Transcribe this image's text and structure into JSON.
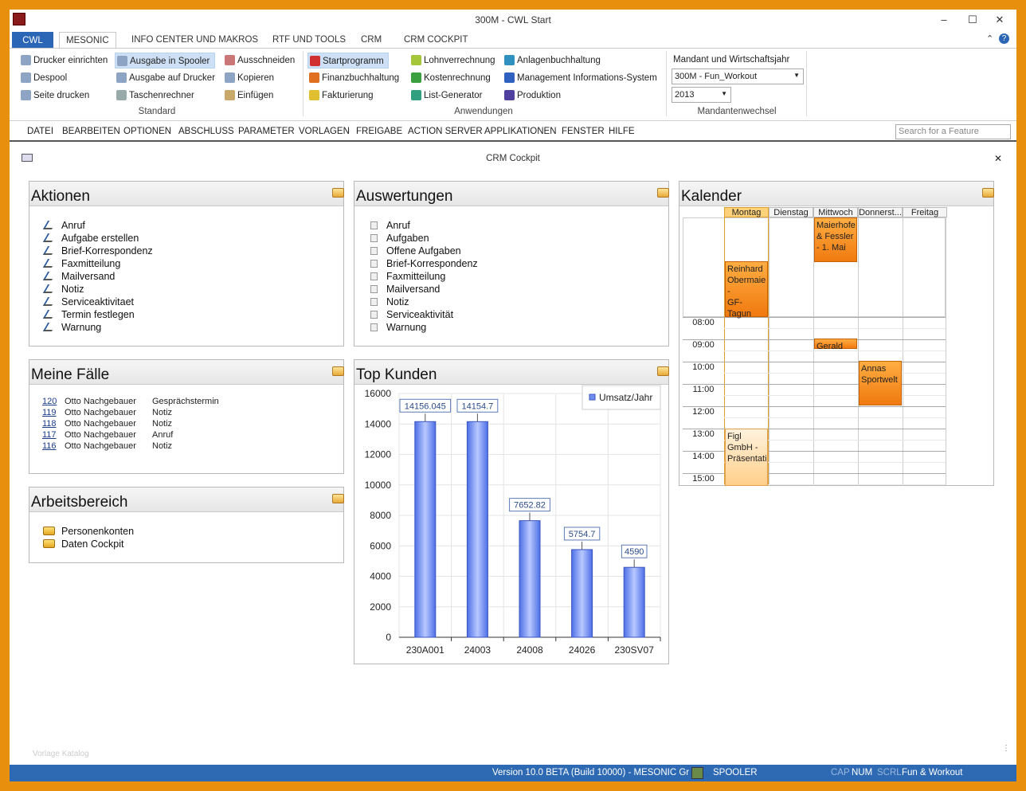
{
  "window": {
    "title": "300M - CWL Start",
    "minimize": "–",
    "maximize": "☐",
    "close": "✕"
  },
  "tabs": [
    "CWL",
    "MESONIC",
    "INFO CENTER UND MAKROS",
    "RTF UND TOOLS",
    "CRM",
    "CRM COCKPIT"
  ],
  "ribbon": {
    "standard": {
      "label": "Standard",
      "col1": [
        "Drucker einrichten",
        "Despool",
        "Seite drucken"
      ],
      "col2": [
        "Ausgabe in Spooler",
        "Ausgabe auf Drucker",
        "Taschenrechner"
      ],
      "col3": [
        "Ausschneiden",
        "Kopieren",
        "Einfügen"
      ]
    },
    "anwendungen": {
      "label": "Anwendungen",
      "col1": [
        "Startprogramm",
        "Finanzbuchhaltung",
        "Fakturierung"
      ],
      "col2": [
        "Lohnverrechnung",
        "Kostenrechnung",
        "List-Generator"
      ],
      "col3": [
        "Anlagenbuchhaltung",
        "Management Informations-System",
        "Produktion"
      ]
    },
    "mandant": {
      "title": "Mandant und Wirtschaftsjahr",
      "mandant_value": "300M - Fun_Workout",
      "year_value": "2013",
      "label": "Mandantenwechsel"
    }
  },
  "menu": [
    "DATEI",
    "BEARBEITEN",
    "OPTIONEN",
    "ABSCHLUSS",
    "PARAMETER",
    "VORLAGEN",
    "FREIGABE",
    "ACTION SERVER",
    "APPLIKATIONEN",
    "FENSTER",
    "HILFE"
  ],
  "search": {
    "placeholder": "Search for a Feature"
  },
  "cockpit": {
    "title": "CRM Cockpit",
    "close": "✕"
  },
  "aktionen": {
    "title": "Aktionen",
    "items": [
      "Anruf",
      "Aufgabe erstellen",
      "Brief-Korrespondenz",
      "Faxmitteilung",
      "Mailversand",
      "Notiz",
      "Serviceaktivitaet",
      "Termin festlegen",
      "Warnung"
    ]
  },
  "auswertungen": {
    "title": "Auswertungen",
    "items": [
      "Anruf",
      "Aufgaben",
      "Offene Aufgaben",
      "Brief-Korrespondenz",
      "Faxmitteilung",
      "Mailversand",
      "Notiz",
      "Serviceaktivität",
      "Warnung"
    ]
  },
  "faelle": {
    "title": "Meine Fälle",
    "rows": [
      {
        "id": "120",
        "name": "Otto Nachgebauer",
        "type": "Gesprächstermin"
      },
      {
        "id": "119",
        "name": "Otto Nachgebauer",
        "type": "Notiz"
      },
      {
        "id": "118",
        "name": "Otto Nachgebauer",
        "type": "Notiz"
      },
      {
        "id": "117",
        "name": "Otto Nachgebauer",
        "type": "Anruf"
      },
      {
        "id": "116",
        "name": "Otto Nachgebauer",
        "type": "Notiz"
      }
    ]
  },
  "arbeitsbereich": {
    "title": "Arbeitsbereich",
    "items": [
      "Personenkonten",
      "Daten Cockpit"
    ]
  },
  "topkunden": {
    "title": "Top Kunden"
  },
  "chart_data": {
    "type": "bar",
    "categories": [
      "230A001",
      "24003",
      "24008",
      "24026",
      "230SV07"
    ],
    "series": [
      {
        "name": "Umsatz/Jahr",
        "values": [
          14156.045,
          14154.7,
          7652.82,
          5754.7,
          4590
        ]
      }
    ],
    "data_labels": [
      "14156.045",
      "14154.7",
      "7652.82",
      "5754.7",
      "4590"
    ],
    "ylim": [
      0,
      16000
    ],
    "yticks": [
      "0",
      "2000",
      "4000",
      "6000",
      "8000",
      "10000",
      "12000",
      "14000",
      "16000"
    ],
    "legend": "top-right",
    "bar_color": "#6f8ef0"
  },
  "kalender": {
    "title": "Kalender",
    "days": [
      "Montag",
      "Dienstag",
      "Mittwoch",
      "Donnerst...",
      "Freitag"
    ],
    "times": [
      "08:00",
      "09:00",
      "10:00",
      "11:00",
      "12:00",
      "13:00",
      "14:00",
      "15:00"
    ],
    "events": [
      {
        "day": "Mittwoch",
        "text": "Maierhofe\n& Fessler\n- 1. Mai"
      },
      {
        "day": "Montag",
        "text": "Reinhard\nObermaie\n-\nGF-Tagun"
      },
      {
        "day": "Mittwoch",
        "text": "Gerald"
      },
      {
        "day": "Donnerst...",
        "text": "Annas\nSportwelt"
      },
      {
        "day": "Montag",
        "text": "Figl\nGmbH -\nPräsentati"
      }
    ]
  },
  "footer": {
    "watermark": "Vorlage Katalog"
  },
  "status": {
    "version": "Version 10.0 BETA (Build 10000) - MESONIC Gr",
    "spooler": "SPOOLER",
    "cap": "CAP",
    "num": "NUM",
    "scrl": "SCRL",
    "mandant": "Fun & Workout"
  }
}
